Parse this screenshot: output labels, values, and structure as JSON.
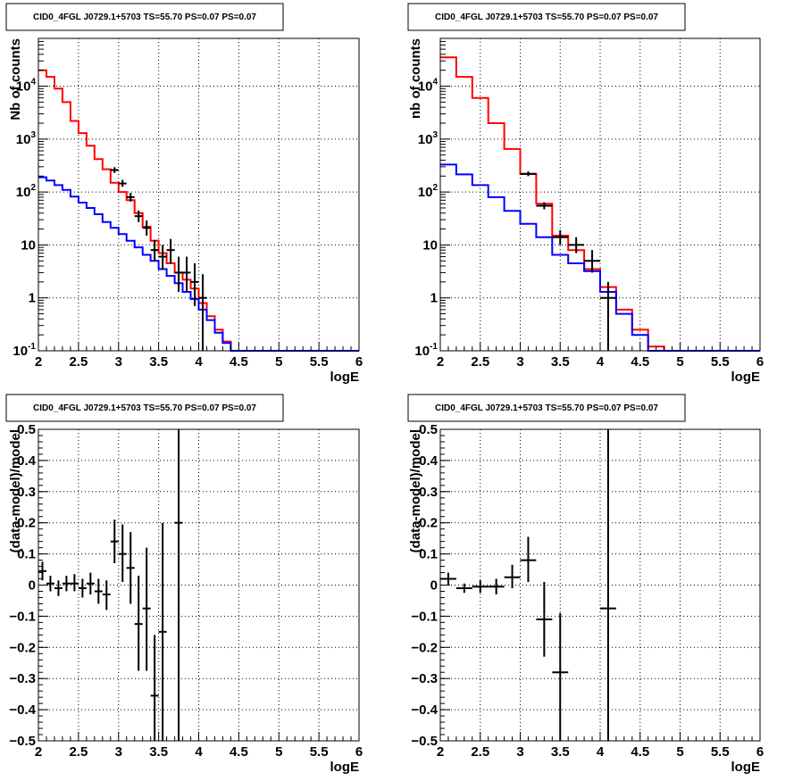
{
  "chart_data": [
    {
      "type": "histogram",
      "scale": "log",
      "title": "CID0_4FGL J0729.1+5703 TS=55.70 PS=0.07 PS=0.07",
      "xlabel": "logE",
      "ylabel": "Nb of counts",
      "xlim": [
        2,
        6
      ],
      "ylim": [
        0.1,
        80000
      ],
      "grid": true,
      "x_ticks": [
        "2",
        "2.5",
        "3",
        "3.5",
        "4",
        "4.5",
        "5",
        "5.5",
        "6"
      ],
      "y_ticks": [
        {
          "v": 0.1,
          "label": "10",
          "sup": "-1"
        },
        {
          "v": 1,
          "label": "1",
          "sup": ""
        },
        {
          "v": 10,
          "label": "10",
          "sup": ""
        },
        {
          "v": 100,
          "label": "10",
          "sup": "2"
        },
        {
          "v": 1000,
          "label": "10",
          "sup": "3"
        },
        {
          "v": 10000,
          "label": "10",
          "sup": "4"
        }
      ],
      "bin_edges": [
        2.0,
        2.1,
        2.2,
        2.3,
        2.4,
        2.5,
        2.6,
        2.7,
        2.8,
        2.9,
        3.0,
        3.1,
        3.2,
        3.3,
        3.4,
        3.5,
        3.6,
        3.7,
        3.8,
        3.9,
        4.0,
        4.1,
        4.2,
        4.3,
        4.4,
        4.5,
        4.6,
        4.7,
        4.8,
        4.9,
        5.0,
        5.1,
        5.2,
        5.3,
        5.4,
        5.5,
        5.6,
        5.7,
        5.8,
        5.9,
        6.0
      ],
      "series": [
        {
          "name": "",
          "color": "#ff0000",
          "values": [
            20000,
            15000,
            9000,
            5000,
            2200,
            1300,
            750,
            420,
            270,
            150,
            100,
            70,
            40,
            22,
            12,
            7,
            4.5,
            3,
            2.2,
            1.5,
            0.8,
            0.45,
            0.25,
            0.15,
            0.1,
            0.1,
            0.1,
            0.1,
            0.1,
            0.1,
            0.1,
            0.1,
            0.1,
            0.1,
            0.1,
            0.1,
            0.1,
            0.1,
            0.1,
            0.1
          ]
        },
        {
          "name": "",
          "color": "#0000ff",
          "values": [
            190,
            165,
            135,
            110,
            82,
            63,
            50,
            38,
            27,
            21,
            16,
            12,
            9,
            6.5,
            5,
            3.5,
            2.6,
            1.9,
            1.3,
            0.95,
            0.6,
            0.38,
            0.22,
            0.14,
            0.1,
            0.1,
            0.1,
            0.1,
            0.1,
            0.1,
            0.1,
            0.1,
            0.1,
            0.1,
            0.1,
            0.1,
            0.1,
            0.1,
            0.1,
            0.1
          ]
        }
      ],
      "points": [
        {
          "x": 2.95,
          "y": 260,
          "lo": 230,
          "hi": 295,
          "xerr": 0.05
        },
        {
          "x": 3.05,
          "y": 145,
          "lo": 125,
          "hi": 170,
          "xerr": 0.05
        },
        {
          "x": 3.15,
          "y": 80,
          "lo": 66,
          "hi": 96,
          "xerr": 0.05
        },
        {
          "x": 3.25,
          "y": 35,
          "lo": 27,
          "hi": 45,
          "xerr": 0.05
        },
        {
          "x": 3.35,
          "y": 21,
          "lo": 15,
          "hi": 29,
          "xerr": 0.05
        },
        {
          "x": 3.45,
          "y": 8,
          "lo": 5,
          "hi": 12.5,
          "xerr": 0.05
        },
        {
          "x": 3.55,
          "y": 6,
          "lo": 3.5,
          "hi": 10,
          "xerr": 0.05
        },
        {
          "x": 3.65,
          "y": 8,
          "lo": 4.5,
          "hi": 13,
          "xerr": 0.05
        },
        {
          "x": 3.75,
          "y": 3,
          "lo": 1.3,
          "hi": 6,
          "xerr": 0.05
        },
        {
          "x": 3.85,
          "y": 3,
          "lo": 1.3,
          "hi": 6,
          "xerr": 0.05
        },
        {
          "x": 3.95,
          "y": 2,
          "lo": 0.7,
          "hi": 4.5,
          "xerr": 0.05
        },
        {
          "x": 4.05,
          "y": 1,
          "lo": 0.1,
          "hi": 2.8,
          "xerr": 0.05
        }
      ]
    },
    {
      "type": "histogram",
      "scale": "log",
      "title": "CID0_4FGL J0729.1+5703 TS=55.70 PS=0.07 PS=0.07",
      "xlabel": "logE",
      "ylabel": "nb of counts",
      "xlim": [
        2,
        6
      ],
      "ylim": [
        0.1,
        80000
      ],
      "grid": true,
      "x_ticks": [
        "2",
        "2.5",
        "3",
        "3.5",
        "4",
        "4.5",
        "5",
        "5.5",
        "6"
      ],
      "y_ticks": [
        {
          "v": 0.1,
          "label": "10",
          "sup": "-1"
        },
        {
          "v": 1,
          "label": "1",
          "sup": ""
        },
        {
          "v": 10,
          "label": "10",
          "sup": ""
        },
        {
          "v": 100,
          "label": "10",
          "sup": "2"
        },
        {
          "v": 1000,
          "label": "10",
          "sup": "3"
        },
        {
          "v": 10000,
          "label": "10",
          "sup": "4"
        }
      ],
      "bin_edges": [
        2.0,
        2.2,
        2.4,
        2.6,
        2.8,
        3.0,
        3.2,
        3.4,
        3.6,
        3.8,
        4.0,
        4.2,
        4.4,
        4.6,
        4.8,
        5.0,
        5.2,
        5.4,
        5.6,
        5.8,
        6.0
      ],
      "series": [
        {
          "name": "",
          "color": "#ff0000",
          "values": [
            35000,
            15000,
            6000,
            2000,
            650,
            220,
            60,
            15,
            8,
            3.5,
            1.6,
            0.6,
            0.25,
            0.12,
            0.1,
            0.1,
            0.1,
            0.1,
            0.1,
            0.1
          ]
        },
        {
          "name": "",
          "color": "#0000ff",
          "values": [
            330,
            215,
            135,
            80,
            44,
            25,
            14,
            6.5,
            4.5,
            3.2,
            1.3,
            0.5,
            0.2,
            0.1,
            0.1,
            0.1,
            0.1,
            0.1,
            0.1,
            0.1
          ]
        }
      ],
      "points": [
        {
          "x": 3.1,
          "y": 220,
          "lo": 200,
          "hi": 245,
          "xerr": 0.1
        },
        {
          "x": 3.3,
          "y": 55,
          "lo": 47,
          "hi": 64,
          "xerr": 0.1
        },
        {
          "x": 3.5,
          "y": 14,
          "lo": 10,
          "hi": 19,
          "xerr": 0.1
        },
        {
          "x": 3.7,
          "y": 10,
          "lo": 7,
          "hi": 14,
          "xerr": 0.1
        },
        {
          "x": 3.9,
          "y": 5,
          "lo": 3,
          "hi": 8,
          "xerr": 0.1
        },
        {
          "x": 4.1,
          "y": 1,
          "lo": 0.1,
          "hi": 2,
          "xerr": 0.1
        }
      ]
    },
    {
      "type": "scatter",
      "scale": "linear",
      "title": "CID0_4FGL J0729.1+5703 TS=55.70 PS=0.07 PS=0.07",
      "xlabel": "logE",
      "ylabel": "(data-model)/model",
      "xlim": [
        2,
        6
      ],
      "ylim": [
        -0.5,
        0.5
      ],
      "grid": true,
      "x_ticks": [
        "2",
        "2.5",
        "3",
        "3.5",
        "4",
        "4.5",
        "5",
        "5.5",
        "6"
      ],
      "y_ticks": [
        {
          "v": -0.5,
          "label": "−0.5"
        },
        {
          "v": -0.4,
          "label": "−0.4"
        },
        {
          "v": -0.3,
          "label": "−0.3"
        },
        {
          "v": -0.2,
          "label": "−0.2"
        },
        {
          "v": -0.1,
          "label": "−0.1"
        },
        {
          "v": 0,
          "label": "0"
        },
        {
          "v": 0.1,
          "label": "0.1"
        },
        {
          "v": 0.2,
          "label": "0.2"
        },
        {
          "v": 0.3,
          "label": "0.3"
        },
        {
          "v": 0.4,
          "label": "0.4"
        },
        {
          "v": 0.5,
          "label": "0.5"
        }
      ],
      "points": [
        {
          "x": 2.05,
          "y": 0.045,
          "lo": 0.015,
          "hi": 0.075,
          "xerr": 0.05
        },
        {
          "x": 2.15,
          "y": 0.005,
          "lo": -0.02,
          "hi": 0.03,
          "xerr": 0.05
        },
        {
          "x": 2.25,
          "y": -0.01,
          "lo": -0.035,
          "hi": 0.015,
          "xerr": 0.05
        },
        {
          "x": 2.35,
          "y": 0.005,
          "lo": -0.02,
          "hi": 0.03,
          "xerr": 0.05
        },
        {
          "x": 2.45,
          "y": 0.005,
          "lo": -0.02,
          "hi": 0.035,
          "xerr": 0.05
        },
        {
          "x": 2.55,
          "y": -0.01,
          "lo": -0.04,
          "hi": 0.02,
          "xerr": 0.05
        },
        {
          "x": 2.65,
          "y": 0.005,
          "lo": -0.03,
          "hi": 0.04,
          "xerr": 0.05
        },
        {
          "x": 2.75,
          "y": -0.02,
          "lo": -0.06,
          "hi": 0.02,
          "xerr": 0.05
        },
        {
          "x": 2.85,
          "y": -0.03,
          "lo": -0.08,
          "hi": 0.015,
          "xerr": 0.05
        },
        {
          "x": 2.95,
          "y": 0.14,
          "lo": 0.07,
          "hi": 0.21,
          "xerr": 0.05
        },
        {
          "x": 3.05,
          "y": 0.1,
          "lo": 0.01,
          "hi": 0.195,
          "xerr": 0.05
        },
        {
          "x": 3.15,
          "y": 0.055,
          "lo": -0.06,
          "hi": 0.17,
          "xerr": 0.05
        },
        {
          "x": 3.25,
          "y": -0.125,
          "lo": -0.275,
          "hi": 0.03,
          "xerr": 0.05
        },
        {
          "x": 3.35,
          "y": -0.075,
          "lo": -0.275,
          "hi": 0.12,
          "xerr": 0.05
        },
        {
          "x": 3.45,
          "y": -0.355,
          "lo": -0.5,
          "hi": -0.16,
          "xerr": 0.05
        },
        {
          "x": 3.55,
          "y": -0.15,
          "lo": -0.5,
          "hi": 0.2,
          "xerr": 0.05
        },
        {
          "x": 3.75,
          "y": 0.2,
          "lo": -0.5,
          "hi": 0.5,
          "xerr": 0.05
        }
      ]
    },
    {
      "type": "scatter",
      "scale": "linear",
      "title": "CID0_4FGL J0729.1+5703 TS=55.70 PS=0.07 PS=0.07",
      "xlabel": "logE",
      "ylabel": "(data-model)/model",
      "xlim": [
        2,
        6
      ],
      "ylim": [
        -0.5,
        0.5
      ],
      "grid": true,
      "x_ticks": [
        "2",
        "2.5",
        "3",
        "3.5",
        "4",
        "4.5",
        "5",
        "5.5",
        "6"
      ],
      "y_ticks": [
        {
          "v": -0.5,
          "label": "−0.5"
        },
        {
          "v": -0.4,
          "label": "−0.4"
        },
        {
          "v": -0.3,
          "label": "−0.3"
        },
        {
          "v": -0.2,
          "label": "−0.2"
        },
        {
          "v": -0.1,
          "label": "−0.1"
        },
        {
          "v": 0,
          "label": "0"
        },
        {
          "v": 0.1,
          "label": "0.1"
        },
        {
          "v": 0.2,
          "label": "0.2"
        },
        {
          "v": 0.3,
          "label": "0.3"
        },
        {
          "v": 0.4,
          "label": "0.4"
        },
        {
          "v": 0.5,
          "label": "0.5"
        }
      ],
      "points": [
        {
          "x": 2.1,
          "y": 0.02,
          "lo": 0.0,
          "hi": 0.04,
          "xerr": 0.1
        },
        {
          "x": 2.3,
          "y": -0.01,
          "lo": -0.025,
          "hi": 0.005,
          "xerr": 0.1
        },
        {
          "x": 2.5,
          "y": -0.005,
          "lo": -0.025,
          "hi": 0.015,
          "xerr": 0.1
        },
        {
          "x": 2.7,
          "y": -0.005,
          "lo": -0.03,
          "hi": 0.02,
          "xerr": 0.1
        },
        {
          "x": 2.9,
          "y": 0.025,
          "lo": -0.01,
          "hi": 0.065,
          "xerr": 0.1
        },
        {
          "x": 3.1,
          "y": 0.08,
          "lo": 0.01,
          "hi": 0.155,
          "xerr": 0.1
        },
        {
          "x": 3.3,
          "y": -0.11,
          "lo": -0.23,
          "hi": 0.01,
          "xerr": 0.1
        },
        {
          "x": 3.5,
          "y": -0.28,
          "lo": -0.5,
          "hi": -0.09,
          "xerr": 0.1
        },
        {
          "x": 4.1,
          "y": -0.075,
          "lo": -0.5,
          "hi": 0.5,
          "xerr": 0.1
        }
      ]
    }
  ]
}
